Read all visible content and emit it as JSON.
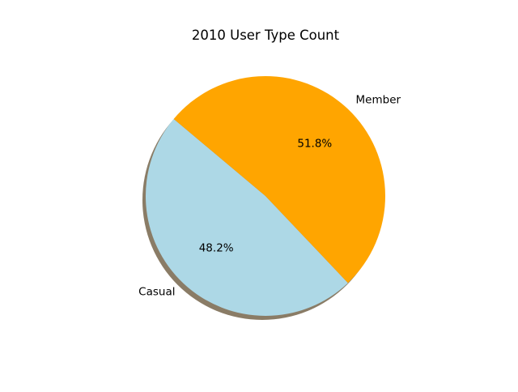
{
  "chart_data": {
    "type": "pie",
    "title": "2010 User Type Count",
    "slices": [
      {
        "label": "Casual",
        "value": 48.2,
        "pct_label": "48.2%",
        "color": "#add8e6"
      },
      {
        "label": "Member",
        "value": 51.8,
        "pct_label": "51.8%",
        "color": "#ffa500"
      }
    ],
    "start_angle_deg": 140,
    "counterclockwise": true,
    "shadow": true,
    "shadow_color": "#8a7c66",
    "legend": false
  }
}
